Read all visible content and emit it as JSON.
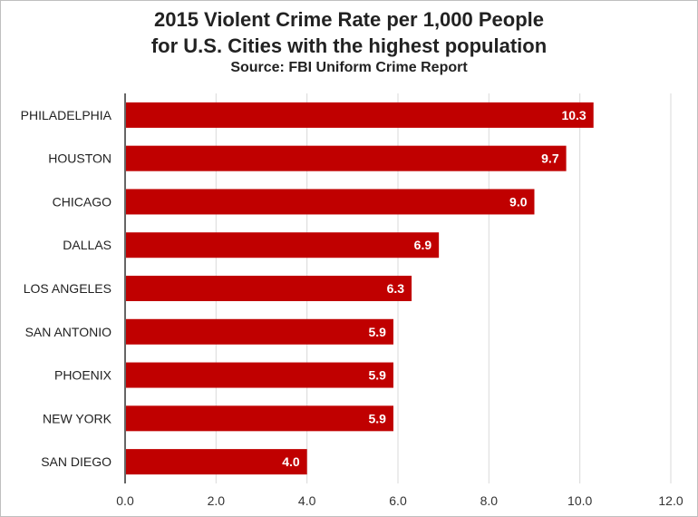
{
  "chart_data": {
    "type": "bar",
    "orientation": "horizontal",
    "title": "2015 Violent Crime Rate per 1,000 People",
    "subtitle": "for U.S. Cities with the highest population",
    "source": "Source: FBI Uniform Crime Report",
    "categories": [
      "PHILADELPHIA",
      "HOUSTON",
      "CHICAGO",
      "DALLAS",
      "LOS ANGELES",
      "SAN ANTONIO",
      "PHOENIX",
      "NEW YORK",
      "SAN DIEGO"
    ],
    "values": [
      10.3,
      9.7,
      9.0,
      6.9,
      6.3,
      5.9,
      5.9,
      5.9,
      4.0
    ],
    "value_labels": [
      "10.3",
      "9.7",
      "9.0",
      "6.9",
      "6.3",
      "5.9",
      "5.9",
      "5.9",
      "4.0"
    ],
    "xlim": [
      0,
      12
    ],
    "x_ticks": [
      "0.0",
      "2.0",
      "4.0",
      "6.0",
      "8.0",
      "10.0",
      "12.0"
    ],
    "xlabel": "",
    "ylabel": "",
    "grid": "vertical",
    "legend": "none",
    "bar_color": "#c00000",
    "grid_color": "#d9d9d9"
  }
}
